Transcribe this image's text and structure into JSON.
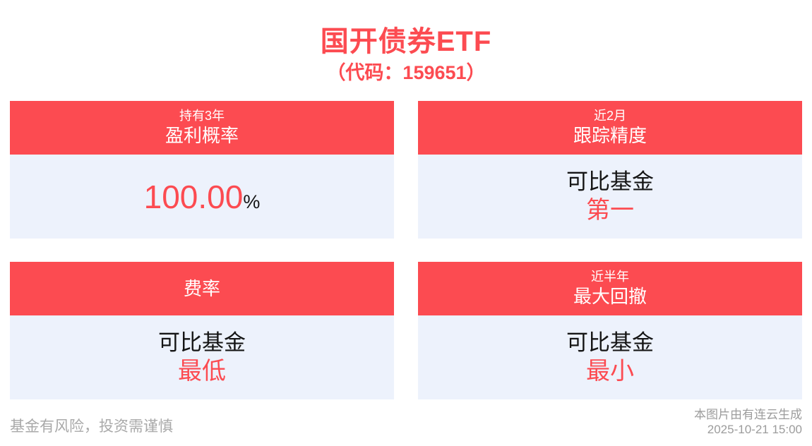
{
  "header": {
    "title": "国开债券ETF",
    "subtitle": "（代码：159651）"
  },
  "cards": [
    {
      "period": "持有3年",
      "metric": "盈利概率",
      "value": "100.00",
      "suffix": "%"
    },
    {
      "period": "近2月",
      "metric": "跟踪精度",
      "line1": "可比基金",
      "line2": "第一"
    },
    {
      "metric": "费率",
      "line1": "可比基金",
      "line2": "最低"
    },
    {
      "period": "近半年",
      "metric": "最大回撤",
      "line1": "可比基金",
      "line2": "最小"
    }
  ],
  "footer": {
    "disclaimer": "基金有风险，投资需谨慎",
    "credit": "本图片由有连云生成",
    "timestamp": "2025-10-21 15:00"
  },
  "colors": {
    "accent_red": "#fc4b51",
    "card_body_bg": "#edf2fc",
    "text_dark": "#151515",
    "footer_gray": "#a9a9a9"
  }
}
